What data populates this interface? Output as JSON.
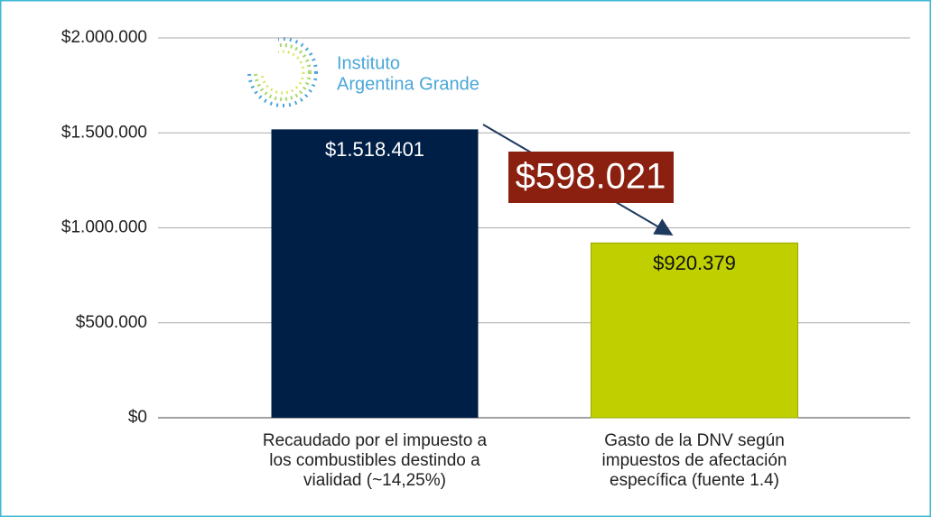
{
  "chart_data": {
    "type": "bar",
    "categories": [
      "Recaudado por el impuesto a\nlos combustibles destindo a\nvialidad (~14,25%)",
      "Gasto de la DNV según\nimpuestos de afectación\nespecífica (fuente 1.4)"
    ],
    "values": [
      1518401,
      920379
    ],
    "value_labels": [
      "$1.518.401",
      "$920.379"
    ],
    "colors": [
      "#001f47",
      "#bfcf00"
    ],
    "ylim": [
      0,
      2000000
    ],
    "yticks": [
      {
        "value": 0,
        "label": "$0"
      },
      {
        "value": 500000,
        "label": "$500.000"
      },
      {
        "value": 1000000,
        "label": "$1.000.000"
      },
      {
        "value": 1500000,
        "label": "$1.500.000"
      },
      {
        "value": 2000000,
        "label": "$2.000.000"
      }
    ],
    "grid": true,
    "annotations": [
      {
        "text": "$598.021"
      }
    ]
  },
  "logo": {
    "lines": [
      "Instituto",
      "Argentina Grande"
    ]
  }
}
